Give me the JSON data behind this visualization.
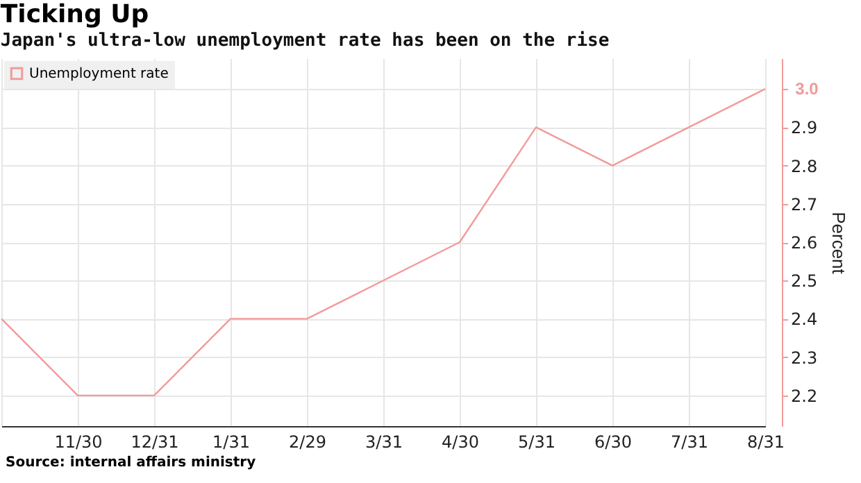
{
  "chart_data": {
    "type": "line",
    "title": "Ticking Up",
    "subtitle": "Japan's ultra-low unemployment rate has been on the rise",
    "ylabel": "Percent",
    "categories": [
      null,
      "11/30",
      "12/31",
      "1/31",
      "2/29",
      "3/31",
      "4/30",
      "5/31",
      "6/30",
      "7/31",
      "8/31"
    ],
    "series": [
      {
        "name": "Unemployment rate",
        "color": "#f29a9a",
        "values": [
          2.4,
          2.2,
          2.2,
          2.4,
          2.4,
          2.5,
          2.6,
          2.9,
          2.8,
          2.9,
          3.0
        ],
        "value_labels": [
          null,
          null,
          null,
          null,
          null,
          null,
          null,
          null,
          null,
          null,
          "3.0"
        ]
      }
    ],
    "ylim": [
      2.12,
      3.08
    ],
    "yticks": [
      2.2,
      2.3,
      2.4,
      2.5,
      2.6,
      2.7,
      2.8,
      2.9,
      {
        "value": 3.0,
        "label": null
      }
    ],
    "grid": true,
    "legend": "top left",
    "marker": "none",
    "line_style": "solid",
    "annotations": [
      "Source: internal affairs ministry"
    ]
  }
}
